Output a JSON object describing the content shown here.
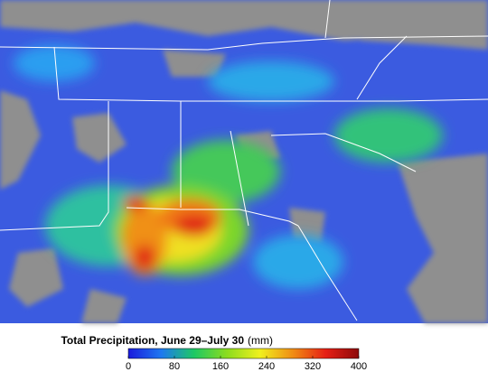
{
  "colorbar": {
    "title": "Total Precipitation, June 29–July 30",
    "unit": "(mm)",
    "lim": [
      0,
      400
    ],
    "ticks": [
      0,
      80,
      160,
      240,
      320,
      400
    ],
    "colors": [
      "#1a1adc",
      "#1e78f0",
      "#1ec864",
      "#8cdc1e",
      "#f0f01e",
      "#f08c14",
      "#e61e14",
      "#8c0a0a"
    ]
  }
}
